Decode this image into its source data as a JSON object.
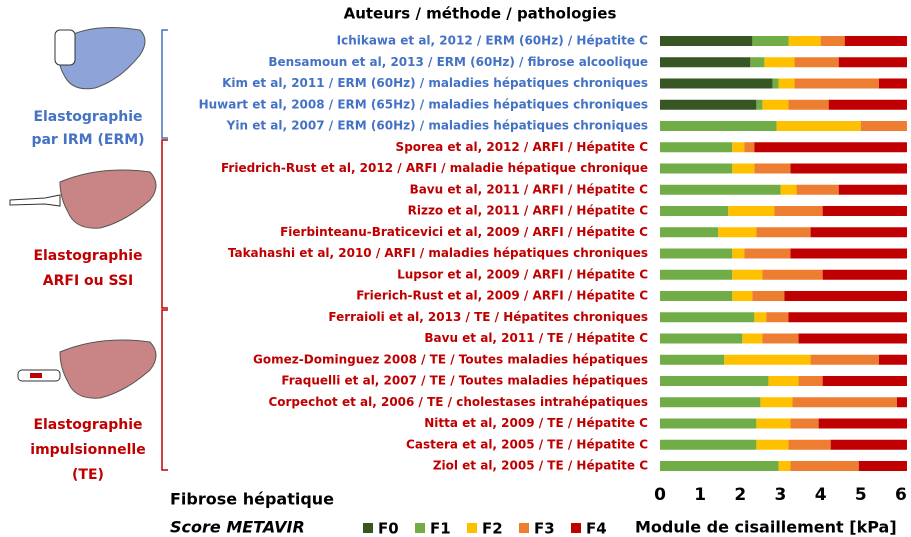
{
  "chart_data": {
    "type": "stacked_barh",
    "title": "Auteurs / méthode / pathologies",
    "xlabel": "Module de cisaillement [kPa]",
    "legend_title": [
      "Fibrose hépatique",
      "Score METAVIR"
    ],
    "categories": [
      "Ichikawa et al, 2012 / ERM (60Hz) / Hépatite C",
      "Bensamoun et al, 2013 / ERM (60Hz) / fibrose alcoolique",
      "Kim et al, 2011 / ERM (60Hz) / maladies hépatiques chroniques",
      "Huwart et al, 2008 / ERM (65Hz) / maladies hépatiques chroniques",
      "Yin et al, 2007 / ERM (60Hz) / maladies hépatiques chroniques",
      "Sporea et al, 2012 / ARFI / Hépatite C",
      "Friedrich-Rust et al, 2012 / ARFI / maladie hépatique chronique",
      "Bavu et al, 2011 / ARFI / Hépatite C",
      "Rizzo et al, 2011 / ARFI / Hépatite C",
      "Fierbinteanu-Braticevici et al, 2009 / ARFI / Hépatite C",
      "Takahashi et al, 2010 / ARFI / maladies hépatiques chroniques",
      "Lupsor et al, 2009 / ARFI / Hépatite C",
      "Frierich-Rust et al, 2009 / ARFI / Hépatite C",
      "Ferraioli et al, 2013 / TE / Hépatites chroniques",
      "Bavu et al, 2011 / TE / Hépatite C",
      "Gomez-Dominguez 2008 / TE / Toutes maladies hépatiques",
      "Fraquelli et al, 2007 / TE / Toutes maladies hépatiques",
      "Corpechot et al, 2006 / TE / cholestases intrahépatiques",
      "Nitta et al, 2009 / TE / Hépatite C",
      "Castera et al, 2005 / TE / Hépatite C",
      "Ziol et al, 2005 / TE / Hépatite C"
    ],
    "category_colors": [
      "#4472c4",
      "#4472c4",
      "#4472c4",
      "#4472c4",
      "#4472c4",
      "#c00000",
      "#c00000",
      "#c00000",
      "#c00000",
      "#c00000",
      "#c00000",
      "#c00000",
      "#c00000",
      "#c00000",
      "#c00000",
      "#c00000",
      "#c00000",
      "#c00000",
      "#c00000",
      "#c00000",
      "#c00000"
    ],
    "series": [
      {
        "name": "F0",
        "color": "#375623",
        "values": [
          2.3,
          2.25,
          2.8,
          2.4,
          0,
          0,
          0,
          0,
          0,
          0,
          0,
          0,
          0,
          0,
          0,
          0,
          0,
          0,
          0,
          0,
          0
        ]
      },
      {
        "name": "F1",
        "color": "#70ad47",
        "values": [
          0.9,
          0.35,
          0.15,
          0.15,
          2.9,
          1.8,
          1.8,
          3.0,
          1.7,
          1.45,
          1.8,
          1.8,
          1.8,
          2.35,
          2.05,
          1.6,
          2.7,
          2.5,
          2.4,
          2.4,
          2.95
        ]
      },
      {
        "name": "F2",
        "color": "#ffc000",
        "values": [
          0.8,
          0.75,
          0.4,
          0.65,
          2.1,
          0.3,
          0.55,
          0.4,
          1.15,
          0.95,
          0.3,
          0.75,
          0.5,
          0.3,
          0.5,
          2.15,
          0.75,
          0.8,
          0.85,
          0.8,
          0.3
        ]
      },
      {
        "name": "F3",
        "color": "#ed7d31",
        "values": [
          0.6,
          1.1,
          2.1,
          1.0,
          1.15,
          0.25,
          0.9,
          1.05,
          1.2,
          1.35,
          1.15,
          1.5,
          0.8,
          0.55,
          0.9,
          1.7,
          0.6,
          2.6,
          0.7,
          1.05,
          1.7
        ]
      },
      {
        "name": "F4",
        "color": "#c00000",
        "values": [
          1.55,
          1.7,
          0.7,
          1.95,
          0,
          3.8,
          2.9,
          1.7,
          2.1,
          2.4,
          2.9,
          2.1,
          3.05,
          2.95,
          2.7,
          0.7,
          2.1,
          0.25,
          2.2,
          1.9,
          1.2
        ]
      }
    ],
    "xlim": [
      0,
      6.2
    ],
    "xticks": [
      0,
      1,
      2,
      3,
      4,
      5,
      6
    ],
    "groups": [
      {
        "label": [
          "Elastographie",
          "par IRM (ERM)"
        ],
        "color": "#4472c4"
      },
      {
        "label": [
          "Elastographie",
          "ARFI ou SSI"
        ],
        "color": "#c00000"
      },
      {
        "label": [
          "Elastographie",
          "impulsionnelle",
          "(TE)"
        ],
        "color": "#c00000"
      }
    ]
  }
}
